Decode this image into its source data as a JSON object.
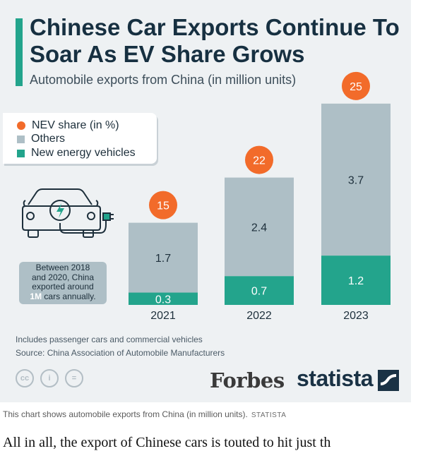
{
  "title": "Chinese Car Exports Continue To Soar As EV Share Grows",
  "subtitle": "Automobile exports from China (in million units)",
  "legend": [
    {
      "label": "NEV share (in %)",
      "color": "#f26b2a",
      "shape": "circle"
    },
    {
      "label": "Others",
      "color": "#aebfc6",
      "shape": "square"
    },
    {
      "label": "New energy vehicles",
      "color": "#23a48c",
      "shape": "square"
    }
  ],
  "note": {
    "line1": "Between 2018",
    "line2": "and 2020, China",
    "line3": "exported around",
    "highlight": "1M",
    "line4": "cars annually."
  },
  "chart_data": {
    "type": "bar",
    "stacked": true,
    "title": "Chinese Car Exports Continue To Soar As EV Share Grows",
    "subtitle": "Automobile exports from China (in million units)",
    "categories": [
      "2021",
      "2022",
      "2023"
    ],
    "series": [
      {
        "name": "New energy vehicles",
        "color": "#23a48c",
        "values": [
          0.3,
          0.7,
          1.2
        ],
        "labels": [
          "0.3",
          "0.7",
          "1.2"
        ]
      },
      {
        "name": "Others",
        "color": "#aebfc6",
        "values": [
          1.7,
          2.4,
          3.7
        ],
        "labels": [
          "1.7",
          "2.4",
          "3.7"
        ]
      }
    ],
    "nev_share": {
      "name": "NEV share (in %)",
      "color": "#f26b2a",
      "values": [
        15,
        22,
        25
      ]
    },
    "ylim": [
      0,
      4.9
    ],
    "xlabel": "",
    "ylabel": ""
  },
  "footnotes": {
    "note": "Includes passenger cars and commercial vehicles",
    "source": "Source: China Association of Automobile Manufacturers"
  },
  "license_icons": [
    "cc-icon",
    "person-icon",
    "equal-icon"
  ],
  "license_glyphs": [
    "cc",
    "i",
    "="
  ],
  "brands": {
    "forbes": "Forbes",
    "statista": "statista"
  },
  "caption": {
    "text": "This chart shows automobile exports from China (in million units).",
    "source": "STATISTA"
  },
  "bottom_text": "All in all, the export of Chinese cars is touted to hit just th"
}
